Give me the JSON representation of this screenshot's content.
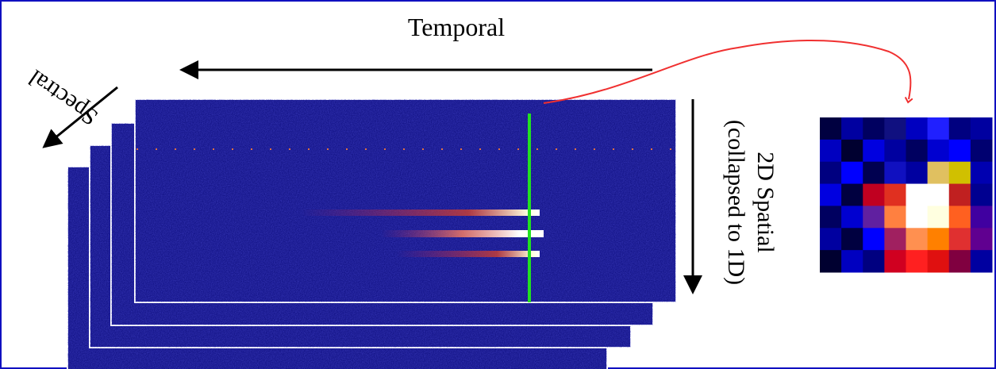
{
  "labels": {
    "temporal": "Temporal",
    "spectral": "Spectral",
    "spatial": "2D Spatial",
    "spatial_note": "(collapsed to 1D)"
  }
}
